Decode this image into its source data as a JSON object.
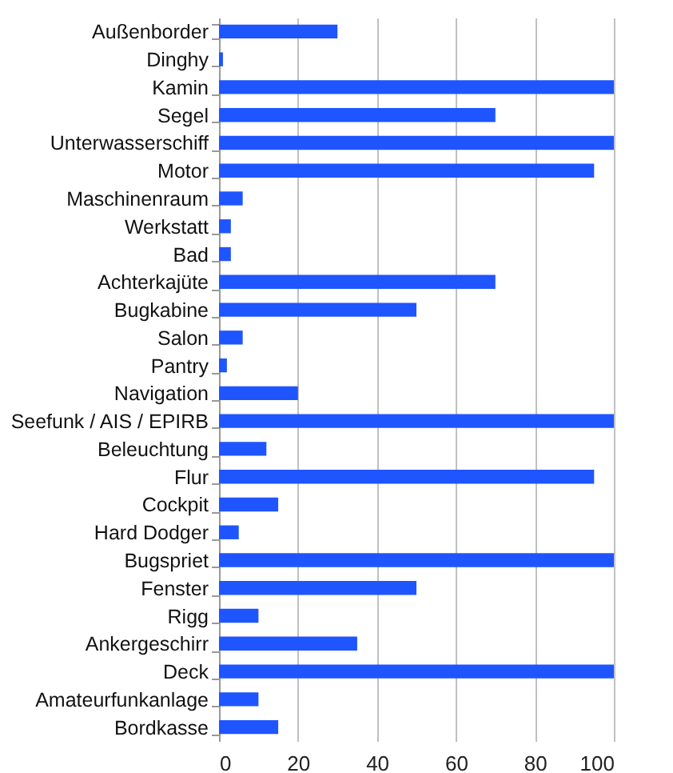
{
  "chart_data": {
    "type": "bar",
    "orientation": "horizontal",
    "categories": [
      "Außenborder",
      "Dinghy",
      "Kamin",
      "Segel",
      "Unterwasserschiff",
      "Motor",
      "Maschinenraum",
      "Werkstatt",
      "Bad",
      "Achterkajüte",
      "Bugkabine",
      "Salon",
      "Pantry",
      "Navigation",
      "Seefunk / AIS / EPIRB",
      "Beleuchtung",
      "Flur",
      "Cockpit",
      "Hard Dodger",
      "Bugspriet",
      "Fenster",
      "Rigg",
      "Ankergeschirr",
      "Deck",
      "Amateurfunkanlage",
      "Bordkasse"
    ],
    "values": [
      30,
      1,
      100,
      70,
      100,
      95,
      6,
      3,
      3,
      70,
      50,
      6,
      2,
      20,
      100,
      12,
      95,
      15,
      5,
      100,
      50,
      10,
      35,
      100,
      10,
      15
    ],
    "color": "#1f55ff",
    "xlim": [
      0,
      100
    ],
    "xticks": [
      0,
      20,
      40,
      60,
      80,
      100
    ],
    "grid": "x"
  }
}
